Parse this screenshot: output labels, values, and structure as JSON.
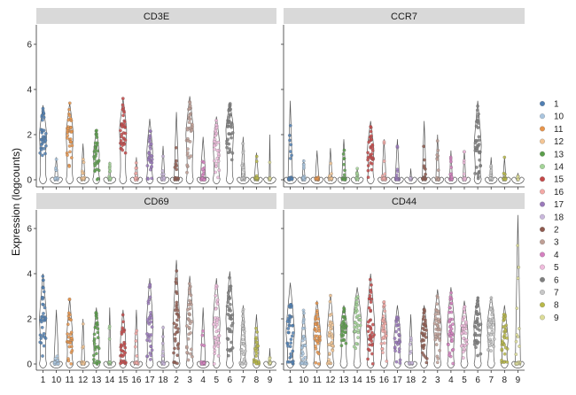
{
  "chart_data": {
    "type": "violin",
    "ylabel": "Expression (logcounts)",
    "ylim": [
      -0.4,
      7
    ],
    "yticks": [
      0,
      2,
      4,
      6
    ],
    "categories": [
      "1",
      "10",
      "11",
      "12",
      "13",
      "14",
      "15",
      "16",
      "17",
      "18",
      "2",
      "3",
      "4",
      "5",
      "6",
      "7",
      "8",
      "9"
    ],
    "legend": {
      "position": "right",
      "items": [
        "1",
        "10",
        "11",
        "12",
        "13",
        "14",
        "15",
        "16",
        "17",
        "18",
        "2",
        "3",
        "4",
        "5",
        "6",
        "7",
        "8",
        "9"
      ],
      "colors": [
        "#4e79a7",
        "#a0cbe8",
        "#f28e2b",
        "#ffbe7d",
        "#59a14f",
        "#8cd17d",
        "#b6992d",
        "#f1ce63",
        "#499894",
        "#86bcb6",
        "#e15759",
        "#ff9d9a",
        "#79706e",
        "#bab0ac",
        "#d37295",
        "#fabfd2",
        "#b07aa1",
        "#d4a6c8"
      ]
    },
    "palette": {
      "1": "#4f7fb3",
      "10": "#a9c5df",
      "11": "#e8944a",
      "12": "#f3c594",
      "13": "#5a9e4a",
      "14": "#a3d497",
      "15": "#c44848",
      "16": "#f3a9a6",
      "17": "#9a79bb",
      "18": "#c9b7dc",
      "2": "#8f5a4f",
      "3": "#bf9f95",
      "4": "#d580c0",
      "5": "#efbbdc",
      "6": "#7f7f7f",
      "7": "#c7c7c7",
      "8": "#b8b848",
      "9": "#dcdc97"
    },
    "panels": [
      {
        "title": "CD3E",
        "max": [
          3.3,
          1.0,
          3.4,
          1.6,
          2.2,
          0.8,
          3.6,
          1.0,
          2.7,
          1.5,
          3.0,
          3.7,
          1.9,
          2.8,
          3.4,
          1.9,
          1.2,
          2.0
        ],
        "median": [
          2.0,
          0.0,
          2.0,
          0.0,
          1.1,
          0.0,
          2.2,
          0.0,
          1.2,
          0.0,
          0.0,
          2.0,
          0.0,
          1.5,
          2.2,
          0.0,
          0.0,
          0.0
        ],
        "width": [
          0.55,
          0.25,
          0.55,
          0.28,
          0.45,
          0.15,
          0.55,
          0.2,
          0.45,
          0.25,
          0.35,
          0.6,
          0.4,
          0.5,
          0.6,
          0.3,
          0.3,
          0.1
        ]
      },
      {
        "title": "CCR7",
        "max": [
          3.5,
          0.9,
          1.3,
          1.4,
          1.8,
          0.5,
          2.6,
          1.8,
          1.8,
          0.5,
          2.6,
          2.0,
          1.3,
          1.3,
          3.5,
          1.0,
          1.0,
          0.3
        ],
        "median": [
          0.0,
          0.0,
          0.0,
          0.0,
          0.0,
          0.0,
          1.3,
          0.0,
          0.0,
          0.0,
          0.0,
          0.0,
          0.0,
          0.0,
          1.5,
          0.0,
          0.0,
          0.0
        ],
        "width": [
          0.35,
          0.2,
          0.25,
          0.25,
          0.3,
          0.15,
          0.5,
          0.3,
          0.3,
          0.1,
          0.3,
          0.25,
          0.2,
          0.2,
          0.55,
          0.2,
          0.2,
          0.1
        ]
      },
      {
        "title": "CD69",
        "max": [
          4.0,
          2.4,
          2.9,
          2.0,
          2.5,
          2.5,
          2.4,
          2.4,
          3.8,
          1.7,
          4.6,
          3.9,
          2.5,
          3.8,
          4.1,
          2.6,
          2.2,
          0.7
        ],
        "median": [
          2.0,
          0.0,
          1.2,
          0.0,
          1.0,
          0.0,
          1.0,
          0.0,
          1.8,
          0.0,
          1.5,
          1.8,
          0.0,
          1.8,
          2.0,
          0.6,
          0.5,
          0.0
        ],
        "width": [
          0.55,
          0.35,
          0.45,
          0.25,
          0.45,
          0.2,
          0.4,
          0.3,
          0.5,
          0.2,
          0.55,
          0.55,
          0.35,
          0.55,
          0.6,
          0.4,
          0.35,
          0.1
        ]
      },
      {
        "title": "CD44",
        "max": [
          3.6,
          2.4,
          2.8,
          3.1,
          2.6,
          3.4,
          4.0,
          2.8,
          2.6,
          2.2,
          2.6,
          3.3,
          3.4,
          2.8,
          3.0,
          3.0,
          2.6,
          6.6
        ],
        "median": [
          1.4,
          0.3,
          1.3,
          1.3,
          1.6,
          2.0,
          1.6,
          1.4,
          1.2,
          0.0,
          1.2,
          1.6,
          1.6,
          1.4,
          1.7,
          1.7,
          1.1,
          0.0
        ],
        "width": [
          0.65,
          0.5,
          0.55,
          0.55,
          0.5,
          0.6,
          0.65,
          0.5,
          0.5,
          0.3,
          0.55,
          0.6,
          0.6,
          0.55,
          0.6,
          0.6,
          0.55,
          0.4
        ]
      }
    ]
  }
}
